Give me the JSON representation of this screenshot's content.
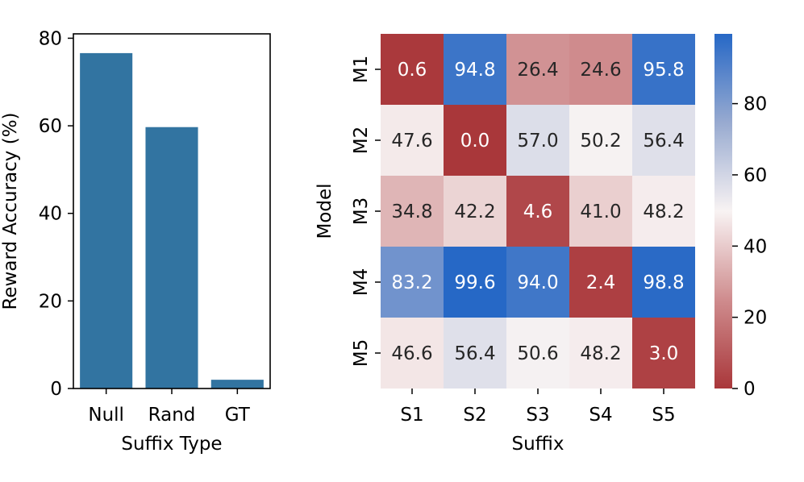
{
  "chart_data": [
    {
      "type": "bar",
      "categories": [
        "Null",
        "Rand",
        "GT"
      ],
      "values": [
        76.6,
        59.7,
        2.0
      ],
      "xlabel": "Suffix Type",
      "ylabel": "Reward Accuracy (%)",
      "ylim": [
        0,
        81
      ],
      "yticks": [
        "0",
        "20",
        "40",
        "60",
        "80"
      ],
      "bar_color": "#3274a1",
      "grid": false
    },
    {
      "type": "heatmap",
      "xlabel": "Suffix",
      "ylabel": "Model",
      "x_categories": [
        "S1",
        "S2",
        "S3",
        "S4",
        "S5"
      ],
      "y_categories": [
        "M1",
        "M2",
        "M3",
        "M4",
        "M5"
      ],
      "cell_labels": [
        [
          "0.6",
          "94.8",
          "26.4",
          "24.6",
          "95.8"
        ],
        [
          "47.6",
          "0.0",
          "57.0",
          "50.2",
          "56.4"
        ],
        [
          "34.8",
          "42.2",
          "4.6",
          "41.0",
          "48.2"
        ],
        [
          "83.2",
          "99.6",
          "94.0",
          "2.4",
          "98.8"
        ],
        [
          "46.6",
          "56.4",
          "50.6",
          "48.2",
          "3.0"
        ]
      ],
      "values": [
        [
          0.6,
          94.8,
          26.4,
          24.6,
          95.8
        ],
        [
          47.6,
          0.0,
          57.0,
          50.2,
          56.4
        ],
        [
          34.8,
          42.2,
          4.6,
          41.0,
          48.2
        ],
        [
          83.2,
          99.6,
          94.0,
          2.4,
          98.8
        ],
        [
          46.6,
          56.4,
          50.6,
          48.2,
          3.0
        ]
      ],
      "colorbar": {
        "range": [
          0,
          99.6
        ],
        "ticks": [
          "0",
          "20",
          "40",
          "60",
          "80"
        ],
        "colormap": "vlag_r"
      }
    }
  ]
}
